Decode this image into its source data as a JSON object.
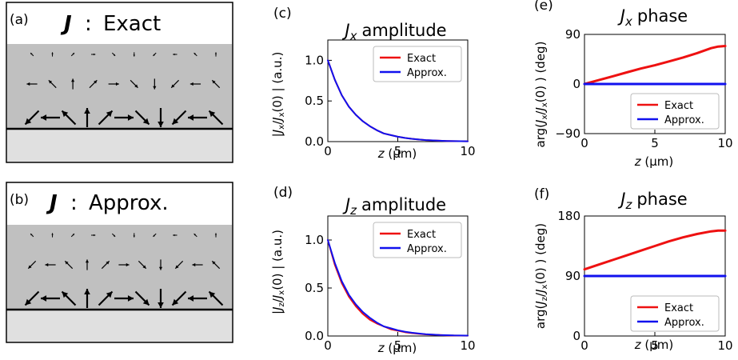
{
  "colors": {
    "exact": "#ee1111",
    "approx": "#1111ee",
    "field": "#c0c0c0",
    "substrate": "#e0e0e0",
    "frame": "#000000"
  },
  "vector_fields": [
    {
      "letter": "(a)",
      "symbol": "J",
      "sep": ":",
      "label": "Exact",
      "rows": [
        {
          "scale": 0.22,
          "angles": [
            -135,
            -90,
            -45,
            0,
            45,
            90,
            135,
            180,
            -135,
            -90
          ]
        },
        {
          "scale": 0.55,
          "angles": [
            180,
            -135,
            -90,
            -45,
            0,
            45,
            90,
            135,
            180,
            -135
          ]
        },
        {
          "scale": 1.0,
          "angles": [
            135,
            180,
            -135,
            -90,
            -45,
            0,
            45,
            90,
            135,
            180,
            -135
          ]
        }
      ]
    },
    {
      "letter": "(b)",
      "symbol": "J",
      "sep": ":",
      "label": "Approx.",
      "rows": [
        {
          "scale": 0.22,
          "angles": [
            -135,
            -90,
            -45,
            0,
            45,
            90,
            135,
            180,
            -135,
            -90
          ]
        },
        {
          "scale": 0.55,
          "angles": [
            135,
            180,
            -135,
            -90,
            -45,
            0,
            45,
            90,
            135,
            180,
            -135
          ]
        },
        {
          "scale": 1.0,
          "angles": [
            135,
            180,
            -135,
            -90,
            -45,
            0,
            45,
            90,
            135,
            180,
            -135
          ]
        }
      ]
    }
  ],
  "chart_data": [
    {
      "id": "c",
      "letter": "(c)",
      "type": "line",
      "title": "J",
      "title_sub": "x",
      "title_rest": "amplitude",
      "ylabel": "|Jx/Jx(0)| (a.u.)",
      "xlabel": "z (µm)",
      "xlim": [
        0,
        10
      ],
      "ylim": [
        0,
        1.25
      ],
      "xticks": [
        0,
        5,
        10
      ],
      "yticks": [
        0,
        0.5,
        1.0
      ],
      "xticklabels": [
        "0",
        "5",
        "10"
      ],
      "yticklabels": [
        "0.0",
        "0.5",
        "1.0"
      ],
      "legend": "top-right",
      "series": [
        {
          "name": "Exact",
          "color": "#ee1111",
          "width": 2,
          "x": [
            0,
            0.5,
            1,
            1.5,
            2,
            2.5,
            3,
            3.5,
            4,
            4.5,
            5,
            5.5,
            6,
            6.5,
            7,
            7.5,
            8,
            8.5,
            9,
            9.5,
            10
          ],
          "y": [
            1.0,
            0.76,
            0.57,
            0.43,
            0.33,
            0.25,
            0.19,
            0.14,
            0.1,
            0.08,
            0.06,
            0.045,
            0.034,
            0.026,
            0.019,
            0.015,
            0.011,
            0.008,
            0.006,
            0.005,
            0.004
          ]
        },
        {
          "name": "Approx.",
          "color": "#1111ee",
          "width": 2,
          "x": [
            0,
            0.5,
            1,
            1.5,
            2,
            2.5,
            3,
            3.5,
            4,
            4.5,
            5,
            5.5,
            6,
            6.5,
            7,
            7.5,
            8,
            8.5,
            9,
            9.5,
            10
          ],
          "y": [
            1.0,
            0.76,
            0.57,
            0.43,
            0.33,
            0.25,
            0.19,
            0.14,
            0.1,
            0.08,
            0.06,
            0.045,
            0.034,
            0.026,
            0.019,
            0.015,
            0.011,
            0.008,
            0.006,
            0.005,
            0.004
          ]
        }
      ]
    },
    {
      "id": "d",
      "letter": "(d)",
      "type": "line",
      "title": "J",
      "title_sub": "z",
      "title_rest": "amplitude",
      "ylabel": "|Jz/Jx(0)| (a.u.)",
      "xlabel": "z (µm)",
      "xlim": [
        0,
        10
      ],
      "ylim": [
        0,
        1.25
      ],
      "xticks": [
        0,
        5,
        10
      ],
      "yticks": [
        0,
        0.5,
        1.0
      ],
      "xticklabels": [
        "0",
        "5",
        "10"
      ],
      "yticklabels": [
        "0.0",
        "0.5",
        "1.0"
      ],
      "legend": "top-right",
      "series": [
        {
          "name": "Exact",
          "color": "#ee1111",
          "width": 2,
          "x": [
            0,
            0.5,
            1,
            1.5,
            2,
            2.5,
            3,
            3.5,
            4,
            4.5,
            5,
            5.5,
            6,
            6.5,
            7,
            7.5,
            8,
            8.5,
            9,
            9.5,
            10
          ],
          "y": [
            1.0,
            0.74,
            0.55,
            0.41,
            0.31,
            0.23,
            0.17,
            0.13,
            0.1,
            0.07,
            0.055,
            0.04,
            0.03,
            0.023,
            0.017,
            0.013,
            0.01,
            0.007,
            0.005,
            0.004,
            0.003
          ]
        },
        {
          "name": "Approx.",
          "color": "#1111ee",
          "width": 2,
          "x": [
            0,
            0.5,
            1,
            1.5,
            2,
            2.5,
            3,
            3.5,
            4,
            4.5,
            5,
            5.5,
            6,
            6.5,
            7,
            7.5,
            8,
            8.5,
            9,
            9.5,
            10
          ],
          "y": [
            1.0,
            0.76,
            0.57,
            0.43,
            0.33,
            0.25,
            0.19,
            0.14,
            0.1,
            0.08,
            0.06,
            0.045,
            0.034,
            0.026,
            0.019,
            0.015,
            0.011,
            0.008,
            0.006,
            0.005,
            0.004
          ]
        }
      ]
    },
    {
      "id": "e",
      "letter": "(e)",
      "type": "line",
      "title": "J",
      "title_sub": "x",
      "title_rest": "phase",
      "ylabel": "arg(Jx/Jx(0)) (deg)",
      "xlabel": "z (µm)",
      "xlim": [
        0,
        10
      ],
      "ylim": [
        -90,
        90
      ],
      "xticks": [
        0,
        5,
        10
      ],
      "yticks": [
        -90,
        0,
        90
      ],
      "xticklabels": [
        "0",
        "5",
        "10"
      ],
      "yticklabels": [
        "−90",
        "0",
        "90"
      ],
      "legend": "bottom-right",
      "series": [
        {
          "name": "Exact",
          "color": "#ee1111",
          "width": 3,
          "x": [
            0,
            1,
            2,
            3,
            4,
            5,
            6,
            7,
            8,
            9,
            9.5,
            10
          ],
          "y": [
            0,
            7,
            14,
            21,
            28,
            34,
            41,
            48,
            56,
            65,
            68,
            69
          ]
        },
        {
          "name": "Approx.",
          "color": "#1111ee",
          "width": 3,
          "x": [
            0,
            10
          ],
          "y": [
            0,
            0
          ]
        }
      ]
    },
    {
      "id": "f",
      "letter": "(f)",
      "type": "line",
      "title": "J",
      "title_sub": "z",
      "title_rest": "phase",
      "ylabel": "arg(Jz/Jx(0)) (deg)",
      "xlabel": "z (µm)",
      "xlim": [
        0,
        10
      ],
      "ylim": [
        0,
        180
      ],
      "xticks": [
        0,
        5,
        10
      ],
      "yticks": [
        0,
        90,
        180
      ],
      "xticklabels": [
        "0",
        "5",
        "10"
      ],
      "yticklabels": [
        "0",
        "90",
        "180"
      ],
      "legend": "bottom-right",
      "series": [
        {
          "name": "Exact",
          "color": "#ee1111",
          "width": 3,
          "x": [
            0,
            1,
            2,
            3,
            4,
            5,
            6,
            7,
            8,
            9,
            9.5,
            10
          ],
          "y": [
            100,
            107,
            114,
            121,
            128,
            135,
            142,
            148,
            153,
            157,
            158,
            158
          ]
        },
        {
          "name": "Approx.",
          "color": "#1111ee",
          "width": 3,
          "x": [
            0,
            10
          ],
          "y": [
            90,
            90
          ]
        }
      ]
    }
  ]
}
